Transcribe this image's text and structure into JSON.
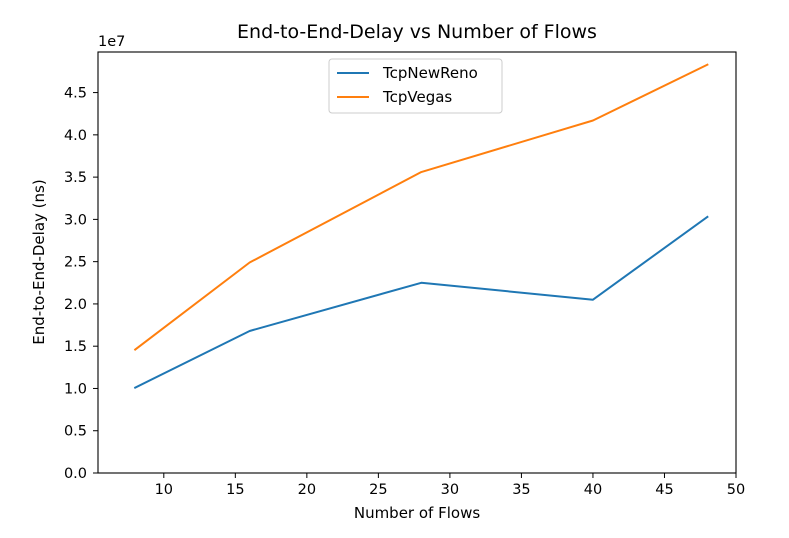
{
  "chart_data": {
    "type": "line",
    "title": "End-to-End-Delay vs Number of Flows",
    "xlabel": "Number of Flows",
    "ylabel": "End-to-End-Delay (ns)",
    "y_offset_label": "1e7",
    "y_scale_factor": 10000000,
    "xlim": [
      5.4,
      50
    ],
    "ylim": [
      0,
      49800000
    ],
    "x_ticks": [
      10,
      15,
      20,
      25,
      30,
      35,
      40,
      45,
      50
    ],
    "y_ticks": [
      0,
      5000000,
      10000000,
      15000000,
      20000000,
      25000000,
      30000000,
      35000000,
      40000000,
      45000000
    ],
    "y_tick_labels": [
      "0.0",
      "0.5",
      "1.0",
      "1.5",
      "2.0",
      "2.5",
      "3.0",
      "3.5",
      "4.0",
      "4.5"
    ],
    "grid": false,
    "legend_position": "top-center",
    "series": [
      {
        "name": "TcpNewReno",
        "color": "#1f77b4",
        "x": [
          8,
          16,
          28,
          40,
          48
        ],
        "y": [
          10100000,
          16800000,
          22500000,
          20500000,
          30300000
        ]
      },
      {
        "name": "TcpVegas",
        "color": "#ff7f0e",
        "x": [
          8,
          16,
          28,
          40,
          48
        ],
        "y": [
          14600000,
          24900000,
          35600000,
          41700000,
          48300000
        ]
      }
    ]
  }
}
